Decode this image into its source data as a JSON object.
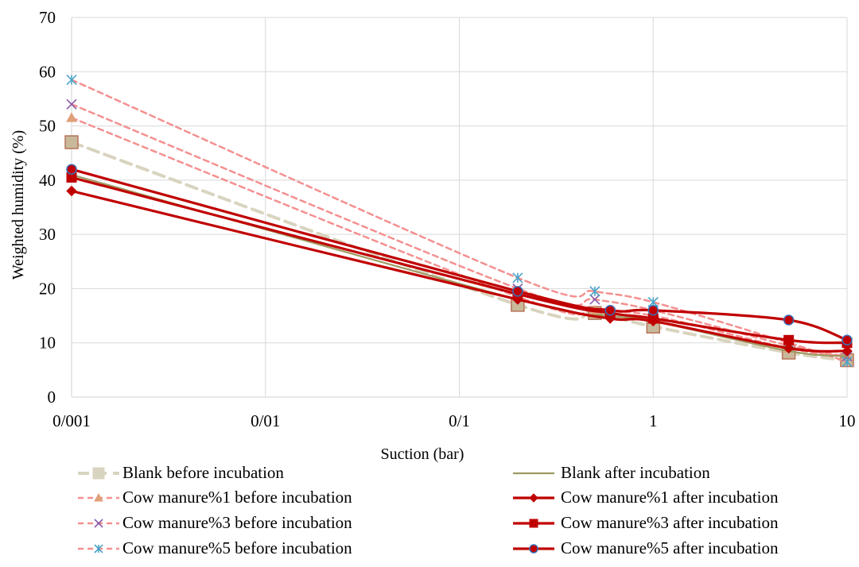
{
  "chart_data": {
    "type": "line",
    "x_scale": "log",
    "xlabel": "Suction (bar)",
    "ylabel": "Weighted humidity (%)",
    "xlim": [
      0.001,
      10
    ],
    "ylim": [
      0,
      70
    ],
    "x_tick_labels": [
      "0/001",
      "0/01",
      "0/1",
      "1",
      "10"
    ],
    "y_tick_labels": [
      "0",
      "10",
      "20",
      "30",
      "40",
      "50",
      "60",
      "70"
    ],
    "grid": true,
    "legend_position": "bottom",
    "series": [
      {
        "name": "Blank before incubation",
        "style": "dashed-thick",
        "color": "#d9d4bf",
        "marker": "square",
        "x": [
          0.001,
          0.2,
          0.5,
          1,
          5,
          10
        ],
        "y": [
          47,
          17,
          15.5,
          13,
          8.2,
          6.8
        ]
      },
      {
        "name": "Blank after incubation",
        "style": "solid",
        "color": "#9e9a62",
        "marker": "none",
        "x": [
          0.001,
          0.2,
          0.6,
          1,
          5,
          10
        ],
        "y": [
          41,
          18,
          15,
          14,
          8.5,
          7.5
        ]
      },
      {
        "name": "Cow manure%1 before incubation",
        "style": "dashed",
        "color": "#f59090",
        "marker": "triangle",
        "x": [
          0.001,
          0.2,
          0.5,
          1,
          5,
          10
        ],
        "y": [
          51.5,
          18.5,
          16,
          15,
          9,
          7.5
        ]
      },
      {
        "name": "Cow manure%1 after incubation",
        "style": "solid",
        "color": "#c00000",
        "marker": "diamond",
        "x": [
          0.001,
          0.2,
          0.6,
          1,
          5,
          10
        ],
        "y": [
          38,
          18,
          14.5,
          14,
          9,
          8.5
        ]
      },
      {
        "name": "Cow manure%3 before incubation",
        "style": "dashed",
        "color": "#f59090",
        "marker": "x",
        "x": [
          0.001,
          0.2,
          0.5,
          1,
          5,
          10
        ],
        "y": [
          54,
          20,
          18,
          16,
          9.5,
          7.5
        ]
      },
      {
        "name": "Cow manure%3 after incubation",
        "style": "solid",
        "color": "#c00000",
        "marker": "square",
        "x": [
          0.001,
          0.2,
          0.6,
          1,
          5,
          10
        ],
        "y": [
          40.5,
          19,
          15.5,
          14.5,
          10.5,
          10
        ]
      },
      {
        "name": "Cow manure%5 before incubation",
        "style": "dashed",
        "color": "#f59090",
        "marker": "star",
        "x": [
          0.001,
          0.2,
          0.5,
          1,
          5,
          10
        ],
        "y": [
          58.5,
          22,
          19.5,
          17.5,
          10,
          6.5
        ]
      },
      {
        "name": "Cow manure%5 after incubation",
        "style": "solid",
        "color": "#c00000",
        "marker": "circle",
        "x": [
          0.001,
          0.2,
          0.6,
          1,
          5,
          10
        ],
        "y": [
          42,
          19.5,
          16,
          16,
          14.2,
          10.5
        ]
      }
    ]
  }
}
